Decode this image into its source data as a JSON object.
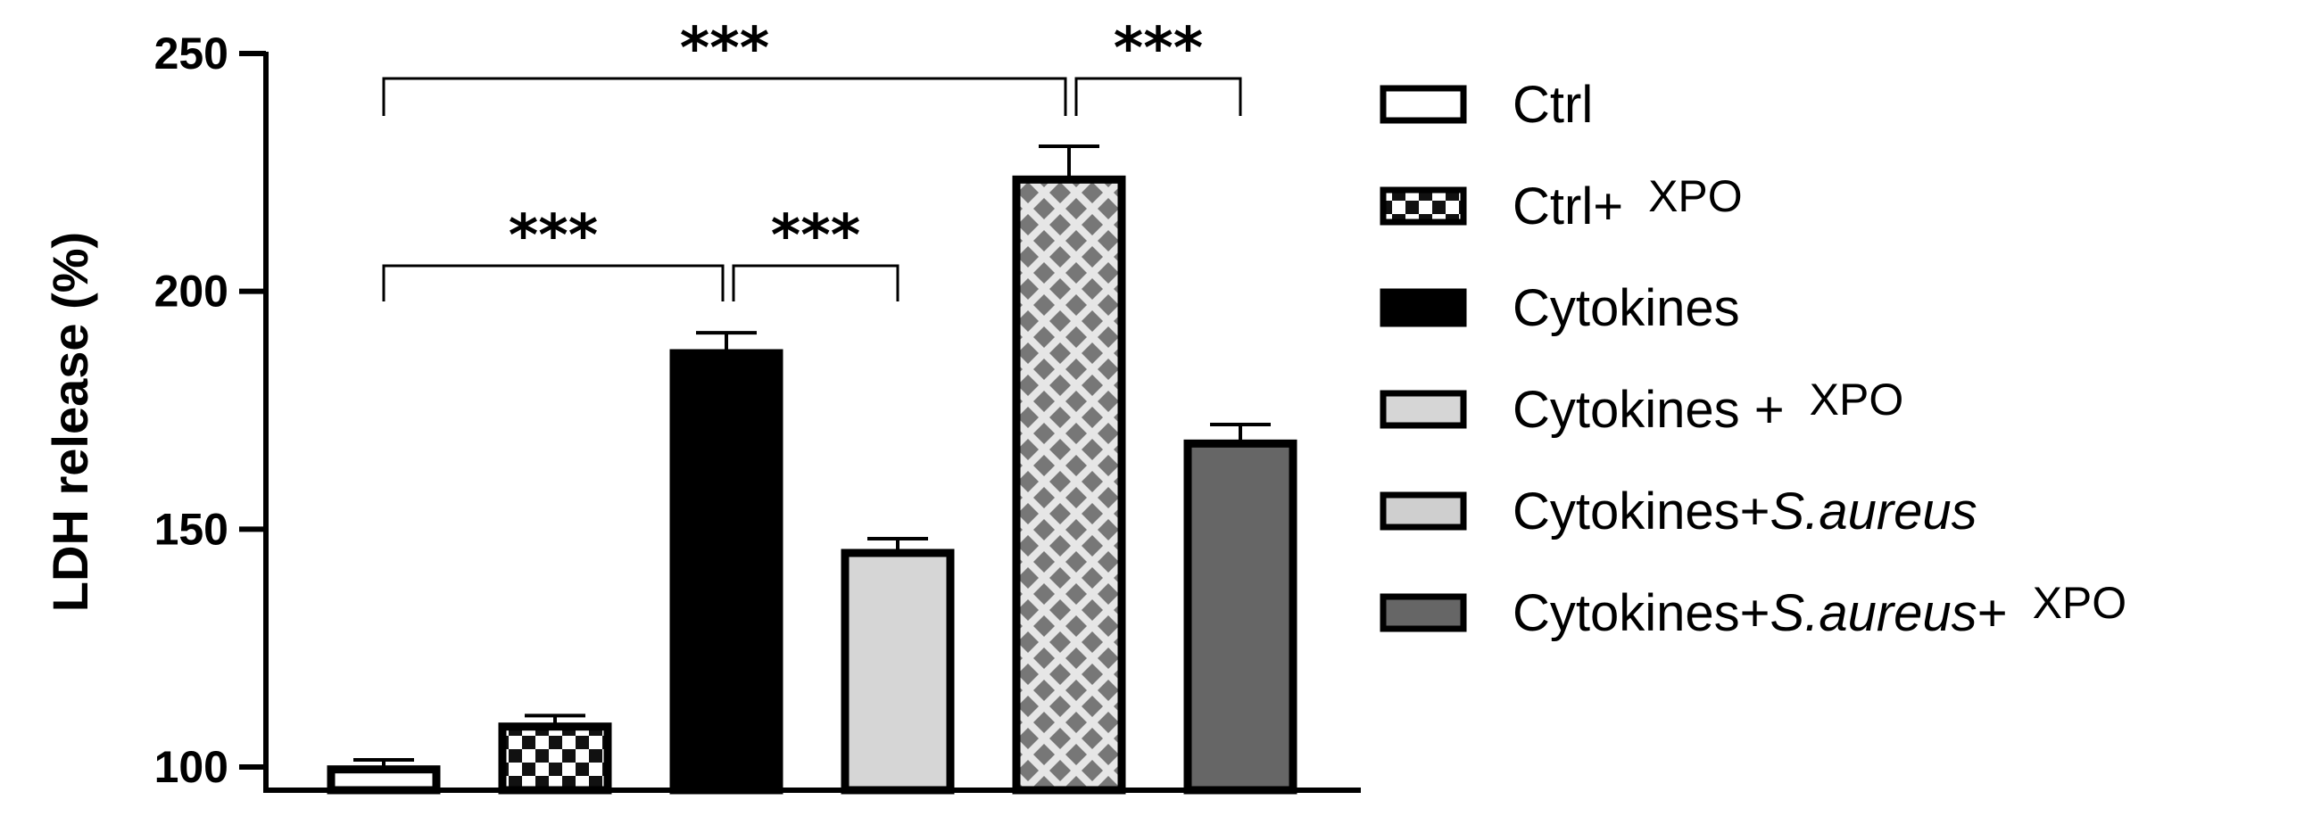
{
  "chart_data": {
    "type": "bar",
    "ylabel": "LDH release (%)",
    "ylim": [
      100,
      250
    ],
    "yticks": [
      100,
      150,
      200,
      250
    ],
    "categories": [
      "Ctrl",
      "Ctrl+ XPO",
      "Cytokines",
      "Cytokines + XPO",
      "Cytokines+ S.aureus",
      "Cytokines+ S.aureus+ XPO"
    ],
    "values": [
      99.5,
      108.5,
      187,
      145,
      223.5,
      168
    ],
    "errors": [
      2,
      2.3,
      4.3,
      3,
      7,
      4
    ],
    "bar_styles": [
      "white",
      "checker",
      "black",
      "lightgray",
      "diamond",
      "darkgray"
    ],
    "significance": [
      {
        "from": 0,
        "to": 4,
        "label": "***"
      },
      {
        "from": 4,
        "to": 5,
        "label": "***"
      },
      {
        "from": 0,
        "to": 2,
        "label": "***"
      },
      {
        "from": 2,
        "to": 3,
        "label": "***"
      }
    ],
    "legend": [
      {
        "parts": [
          {
            "text": "Ctrl",
            "style": "normal"
          }
        ]
      },
      {
        "parts": [
          {
            "text": "Ctrl+",
            "style": "normal"
          },
          {
            "text": "XPO",
            "style": "sup"
          }
        ]
      },
      {
        "parts": [
          {
            "text": "Cytokines",
            "style": "normal"
          }
        ]
      },
      {
        "parts": [
          {
            "text": "Cytokines +",
            "style": "normal"
          },
          {
            "text": "XPO",
            "style": "sup"
          }
        ]
      },
      {
        "parts": [
          {
            "text": "Cytokines+",
            "style": "normal"
          },
          {
            "text": "S.aureus",
            "style": "italic"
          }
        ]
      },
      {
        "parts": [
          {
            "text": "Cytokines+",
            "style": "normal"
          },
          {
            "text": "S.aureus",
            "style": "italic"
          },
          {
            "text": "+",
            "style": "normal"
          },
          {
            "text": "XPO",
            "style": "sup"
          }
        ]
      }
    ],
    "legend_position": "right"
  }
}
